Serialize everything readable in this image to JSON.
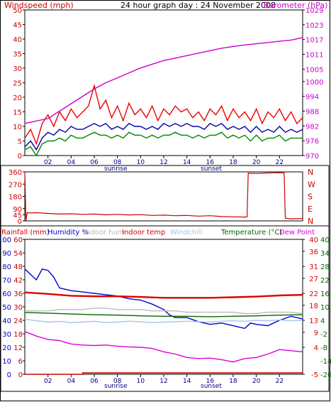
{
  "chart_data": [
    {
      "panel": "top",
      "type": "line",
      "title": "24 hour graph day : 24 November 2008",
      "left_axis": {
        "label": "Windspeed (mph)",
        "ticks": [
          0,
          5,
          10,
          15,
          20,
          25,
          30,
          35,
          40,
          45,
          50
        ],
        "ylim": [
          0,
          50
        ]
      },
      "right_axis": {
        "label": "Barometer (hPa)",
        "ticks": [
          970,
          976,
          982,
          988,
          994,
          1000,
          1005,
          1011,
          1017,
          1023,
          1029
        ],
        "ylim": [
          970,
          1029
        ]
      },
      "x_ticks": [
        "02",
        "04",
        "06",
        "08",
        "10",
        "12",
        "14",
        "16",
        "18",
        "20",
        "22"
      ],
      "x_range": [
        0,
        24
      ],
      "annotations": {
        "sunrise": 8.0,
        "sunset": 16.0,
        "sunrise_label": "sunrise",
        "sunset_label": "sunset"
      },
      "series": [
        {
          "name": "Barometer (hPa)",
          "axis": "right",
          "color": "#cc00cc",
          "x": [
            0,
            2,
            3,
            4,
            5,
            6,
            7,
            8,
            9,
            10,
            11,
            12,
            13,
            14,
            15,
            16,
            17,
            18,
            19,
            20,
            21,
            22,
            23,
            24
          ],
          "values": [
            983,
            985,
            988,
            991,
            994,
            997,
            999.5,
            1001.5,
            1003.5,
            1005.5,
            1007,
            1008.5,
            1009.5,
            1010.5,
            1011.5,
            1012.5,
            1013.5,
            1014.2,
            1014.8,
            1015.3,
            1015.8,
            1016.3,
            1016.8,
            1017.8
          ]
        },
        {
          "name": "Wind gust (mph)",
          "axis": "left",
          "color": "#ee0000",
          "x": [
            0,
            0.5,
            1,
            1.5,
            2,
            2.5,
            3,
            3.5,
            4,
            4.5,
            5,
            5.5,
            6,
            6.5,
            7,
            7.5,
            8,
            8.5,
            9,
            9.5,
            10,
            10.5,
            11,
            11.5,
            12,
            12.5,
            13,
            13.5,
            14,
            14.5,
            15,
            15.5,
            16,
            16.5,
            17,
            17.5,
            18,
            18.5,
            19,
            19.5,
            20,
            20.5,
            21,
            21.5,
            22,
            22.5,
            23,
            23.5,
            24
          ],
          "values": [
            6,
            9,
            4,
            11,
            14,
            10,
            15,
            12,
            16,
            13,
            15,
            17,
            24,
            16,
            19,
            13,
            17,
            12,
            18,
            14,
            16,
            13,
            17,
            12,
            16,
            14,
            17,
            15,
            16,
            13,
            15,
            12,
            16,
            14,
            17,
            12,
            16,
            13,
            15,
            12,
            16,
            11,
            15,
            13,
            16,
            12,
            15,
            11,
            13
          ]
        },
        {
          "name": "Average wind (mph)",
          "axis": "left",
          "color": "#0000aa",
          "x": [
            0,
            0.5,
            1,
            1.5,
            2,
            2.5,
            3,
            3.5,
            4,
            4.5,
            5,
            5.5,
            6,
            6.5,
            7,
            7.5,
            8,
            8.5,
            9,
            9.5,
            10,
            10.5,
            11,
            11.5,
            12,
            12.5,
            13,
            13.5,
            14,
            14.5,
            15,
            15.5,
            16,
            16.5,
            17,
            17.5,
            18,
            18.5,
            19,
            19.5,
            20,
            20.5,
            21,
            21.5,
            22,
            22.5,
            23,
            23.5,
            24
          ],
          "values": [
            3,
            5,
            2,
            6,
            8,
            7,
            9,
            8,
            10,
            9,
            9,
            10,
            11,
            10,
            11,
            9,
            10,
            9,
            11,
            10,
            10,
            9,
            10,
            9,
            11,
            10,
            11,
            10,
            11,
            10,
            10,
            9,
            11,
            10,
            11,
            9,
            10,
            9,
            10,
            8,
            10,
            8,
            9,
            8,
            10,
            8,
            9,
            8,
            9
          ]
        },
        {
          "name": "Lowest wind (mph)",
          "axis": "left",
          "color": "#008800",
          "x": [
            0,
            0.5,
            1,
            1.5,
            2,
            2.5,
            3,
            3.5,
            4,
            4.5,
            5,
            5.5,
            6,
            6.5,
            7,
            7.5,
            8,
            8.5,
            9,
            9.5,
            10,
            10.5,
            11,
            11.5,
            12,
            12.5,
            13,
            13.5,
            14,
            14.5,
            15,
            15.5,
            16,
            16.5,
            17,
            17.5,
            18,
            18.5,
            19,
            19.5,
            20,
            20.5,
            21,
            21.5,
            22,
            22.5,
            23,
            23.5,
            24
          ],
          "values": [
            2,
            3,
            0,
            4,
            5,
            5,
            6,
            5,
            7,
            6,
            6,
            7,
            8,
            7,
            7,
            6,
            7,
            6,
            8,
            7,
            7,
            6,
            7,
            6,
            7,
            7,
            8,
            7,
            7,
            6,
            7,
            6,
            7,
            7,
            8,
            6,
            7,
            6,
            7,
            5,
            7,
            5,
            6,
            6,
            7,
            5,
            6,
            6,
            6
          ]
        }
      ]
    },
    {
      "panel": "middle",
      "type": "line",
      "left_axis": {
        "label": "",
        "ticks": [
          0,
          45,
          90,
          180,
          270,
          360
        ],
        "ylim": [
          0,
          360
        ]
      },
      "right_axis": {
        "label": "",
        "ticks": [
          "N",
          "W",
          "S",
          "E",
          "N"
        ]
      },
      "x_range": [
        0,
        24
      ],
      "series": [
        {
          "name": "Wind direction (deg)",
          "axis": "left",
          "color": "#cc0000",
          "x": [
            0,
            0.1,
            0.2,
            0.5,
            1,
            2,
            3,
            4,
            5,
            6,
            7,
            8,
            9,
            10,
            11,
            12,
            13,
            14,
            15,
            16,
            17,
            18,
            19,
            19.2,
            19.3,
            20,
            21,
            22,
            22.4,
            22.5,
            23,
            24
          ],
          "values": [
            360,
            0,
            60,
            58,
            60,
            55,
            50,
            52,
            48,
            50,
            45,
            48,
            44,
            46,
            40,
            42,
            38,
            40,
            35,
            38,
            32,
            30,
            28,
            30,
            350,
            348,
            352,
            354,
            352,
            20,
            15,
            18
          ]
        }
      ]
    },
    {
      "panel": "bottom",
      "type": "line",
      "axis_labels": {
        "rainfall": "Rainfall (mm)",
        "humidity": "Humidity %",
        "indoor_hum": "Indoor hum",
        "indoor_temp": "Indoor temp",
        "windchill": "Windchill",
        "temperature": "Temperature (°C)",
        "dew_point": "Dew Point"
      },
      "left_axis_humidity": {
        "ticks": [
          0,
          10,
          20,
          30,
          40,
          50,
          60,
          70,
          80,
          90,
          100
        ],
        "ylim": [
          0,
          100
        ]
      },
      "left_axis_rain": {
        "ticks": [
          0,
          6,
          12,
          18,
          24,
          30,
          36,
          42,
          48,
          54,
          60
        ],
        "ylim": [
          0,
          60
        ]
      },
      "right_axis_indoor": {
        "ticks": [
          -5,
          4,
          9,
          13,
          18,
          22,
          27,
          31,
          36,
          40
        ],
        "ylim": [
          -5,
          40
        ]
      },
      "right_axis_temp": {
        "ticks": [
          -20,
          -14,
          -8,
          -2,
          4,
          10,
          16,
          22,
          28,
          34,
          40
        ],
        "ylim": [
          -20,
          40
        ]
      },
      "x_ticks": [
        "02",
        "04",
        "06",
        "08",
        "10",
        "12",
        "14",
        "16",
        "18",
        "20",
        "22"
      ],
      "x_range": [
        0,
        24
      ],
      "annotations": {
        "sunrise": 8.0,
        "sunset": 16.0,
        "sunrise_label": "sunrise",
        "sunset_label": "sunset"
      },
      "series": [
        {
          "name": "Humidity %",
          "axis": "humidity",
          "color": "#0000cc",
          "x": [
            0,
            0.5,
            1,
            1.5,
            2,
            2.5,
            3,
            3.5,
            4,
            5,
            6,
            7,
            8,
            9,
            10,
            11,
            12,
            12.5,
            13,
            14,
            15,
            16,
            17,
            18,
            19,
            19.5,
            20,
            21,
            22,
            23,
            24
          ],
          "values": [
            78,
            74,
            70,
            78,
            77,
            72,
            64,
            63,
            62,
            61,
            60,
            59,
            58,
            56,
            55,
            52,
            48,
            44,
            42,
            42,
            39,
            37,
            38,
            36,
            34,
            38,
            37,
            36,
            40,
            43,
            41
          ]
        },
        {
          "name": "Indoor temp",
          "axis": "indoor",
          "color": "#dd0000",
          "x": [
            0,
            2,
            4,
            6,
            8,
            10,
            12,
            14,
            16,
            18,
            20,
            22,
            24
          ],
          "values": [
            22.3,
            21.8,
            21.2,
            21.0,
            21.0,
            20.8,
            20.5,
            20.5,
            20.5,
            20.7,
            20.9,
            21.3,
            21.5
          ]
        },
        {
          "name": "Temperature (°C)",
          "axis": "temp",
          "color": "#006600",
          "x": [
            0,
            2,
            4,
            6,
            8,
            10,
            12,
            14,
            16,
            18,
            20,
            22,
            24
          ],
          "values": [
            7.5,
            7.2,
            6.8,
            6.5,
            6.3,
            6.0,
            5.8,
            5.8,
            5.6,
            5.8,
            6.0,
            6.3,
            6.5
          ]
        },
        {
          "name": "Windchill",
          "axis": "temp",
          "color": "#aac4e8",
          "x": [
            0,
            1,
            2,
            3,
            4,
            5,
            6,
            7,
            8,
            9,
            10,
            11,
            12,
            13,
            14,
            15,
            16,
            17,
            18,
            19,
            20,
            21,
            22,
            23,
            24
          ],
          "values": [
            4.5,
            3.8,
            3.2,
            3.5,
            3.0,
            3.2,
            3.6,
            3.0,
            3.2,
            3.6,
            3.4,
            3.0,
            3.2,
            3.4,
            3.6,
            3.4,
            3.2,
            3.6,
            3.8,
            3.6,
            4.0,
            3.8,
            4.2,
            3.8,
            4.0
          ]
        },
        {
          "name": "Indoor hum",
          "axis": "humidity",
          "color": "#bbbbbb",
          "x": [
            0,
            1,
            2,
            3,
            4,
            5,
            6,
            7,
            8,
            9,
            10,
            11,
            12,
            13,
            14,
            15,
            16,
            17,
            18,
            19,
            20,
            21,
            22,
            23,
            24
          ],
          "values": [
            47,
            47,
            47,
            48,
            48,
            48,
            49,
            49,
            48,
            48,
            48,
            47,
            47,
            47,
            46,
            46,
            46,
            46,
            46,
            45,
            45,
            46,
            46,
            46,
            45
          ]
        },
        {
          "name": "Dew Point",
          "axis": "temp",
          "color": "#dd00dd",
          "x": [
            0,
            1,
            2,
            3,
            4,
            5,
            6,
            7,
            8,
            9,
            10,
            11,
            12,
            13,
            14,
            15,
            16,
            17,
            18,
            19,
            20,
            21,
            22,
            23,
            24
          ],
          "values": [
            -1.0,
            -3.0,
            -4.5,
            -5.0,
            -6.5,
            -7.0,
            -7.2,
            -7.0,
            -7.5,
            -7.8,
            -8.0,
            -8.5,
            -10.0,
            -11.0,
            -12.5,
            -13.0,
            -12.8,
            -13.5,
            -14.5,
            -13.0,
            -12.5,
            -11.0,
            -9.0,
            -9.5,
            -10.0
          ]
        },
        {
          "name": "Rainfall (mm)",
          "axis": "rain",
          "color": "#cc0000",
          "x": [
            0,
            5,
            5.01,
            24
          ],
          "values": [
            0,
            0,
            0.6,
            0.6
          ]
        }
      ]
    }
  ]
}
